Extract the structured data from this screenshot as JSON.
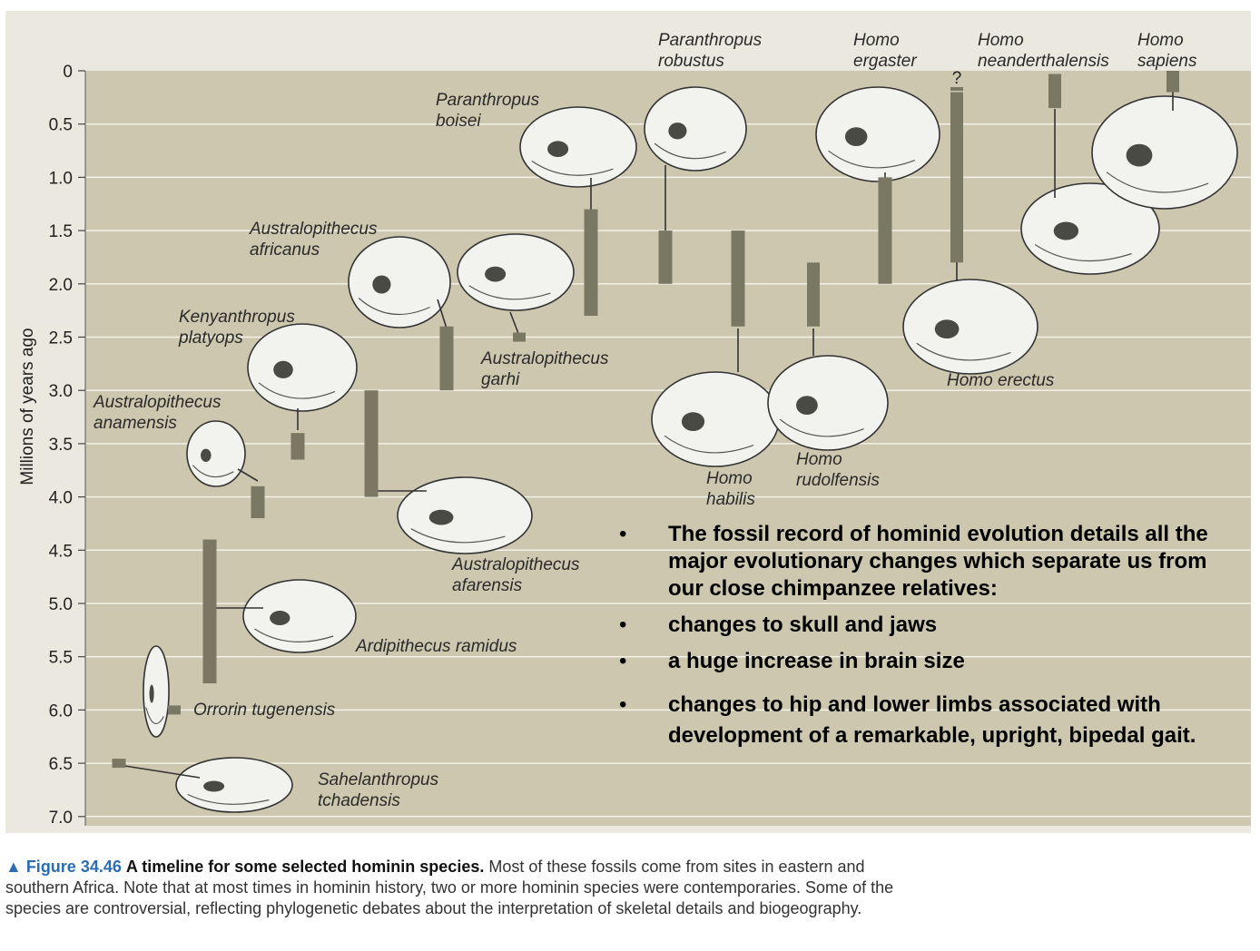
{
  "chart_data": {
    "type": "timeline",
    "ylabel": "Millions of years ago",
    "yticks": [
      "0",
      "0.5",
      "1.0",
      "1.5",
      "2.0",
      "2.5",
      "3.0",
      "3.5",
      "4.0",
      "4.5",
      "5.0",
      "5.5",
      "6.0",
      "6.5",
      "7.0"
    ],
    "ylim": [
      0,
      7.0
    ],
    "grid": true,
    "colors": {
      "panel": "#ccc7ae",
      "bar": "#7a7763",
      "grid": "#f4f2e8",
      "skull": "#f2f2ee"
    },
    "species": [
      {
        "name": "Sahelanthropus tchadensis",
        "label_lines": [
          "Sahelanthropus",
          "tchadensis"
        ],
        "start_mya": 6.5,
        "end_mya": 6.5
      },
      {
        "name": "Orrorin tugenensis",
        "label_lines": [
          "Orrorin tugenensis"
        ],
        "start_mya": 6.0,
        "end_mya": 6.0
      },
      {
        "name": "Ardipithecus ramidus",
        "label_lines": [
          "Ardipithecus ramidus"
        ],
        "start_mya": 5.75,
        "end_mya": 4.4
      },
      {
        "name": "Australopithecus anamensis",
        "label_lines": [
          "Australopithecus",
          "anamensis"
        ],
        "start_mya": 4.2,
        "end_mya": 3.9
      },
      {
        "name": "Kenyanthropus platyops",
        "label_lines": [
          "Kenyanthropus",
          "platyops"
        ],
        "start_mya": 3.65,
        "end_mya": 3.4
      },
      {
        "name": "Australopithecus afarensis",
        "label_lines": [
          "Australopithecus",
          "afarensis"
        ],
        "start_mya": 4.0,
        "end_mya": 3.0
      },
      {
        "name": "Australopithecus africanus",
        "label_lines": [
          "Australopithecus",
          "africanus"
        ],
        "start_mya": 3.0,
        "end_mya": 2.4
      },
      {
        "name": "Australopithecus garhi",
        "label_lines": [
          "Australopithecus",
          "garhi"
        ],
        "start_mya": 2.5,
        "end_mya": 2.5
      },
      {
        "name": "Paranthropus boisei",
        "label_lines": [
          "Paranthropus",
          "boisei"
        ],
        "start_mya": 2.3,
        "end_mya": 1.3
      },
      {
        "name": "Paranthropus robustus",
        "label_lines": [
          "Paranthropus",
          "robustus"
        ],
        "start_mya": 2.0,
        "end_mya": 1.5
      },
      {
        "name": "Homo habilis",
        "label_lines": [
          "Homo",
          "habilis"
        ],
        "start_mya": 2.4,
        "end_mya": 1.5
      },
      {
        "name": "Homo rudolfensis",
        "label_lines": [
          "Homo",
          "rudolfensis"
        ],
        "start_mya": 2.4,
        "end_mya": 1.8
      },
      {
        "name": "Homo ergaster",
        "label_lines": [
          "Homo",
          "ergaster"
        ],
        "start_mya": 2.0,
        "end_mya": 1.0
      },
      {
        "name": "Homo erectus",
        "label_lines": [
          "Homo erectus"
        ],
        "start_mya": 1.8,
        "end_mya": 0.2,
        "uncertain_to_mya": 0.0,
        "uncertain_mark": "?"
      },
      {
        "name": "Homo neanderthalensis",
        "label_lines": [
          "Homo",
          "neanderthalensis"
        ],
        "start_mya": 0.35,
        "end_mya": 0.03
      },
      {
        "name": "Homo sapiens",
        "label_lines": [
          "Homo",
          "sapiens"
        ],
        "start_mya": 0.2,
        "end_mya": 0.0
      }
    ]
  },
  "bullets": [
    "The fossil record of hominid evolution details all the major evolutionary changes which separate us from our close chimpanzee relatives:",
    "changes to skull and jaws",
    "a huge increase in brain size",
    "changes to hip and lower limbs associated with development of a remarkable, upright, bipedal gait."
  ],
  "bullet_symbol": "•",
  "caption": {
    "figure": "▲ Figure 34.46",
    "title": "A timeline for some selected hominin species.",
    "text": "Most of these fossils come from sites in eastern and southern Africa. Note that at most times in hominin history, two or more hominin species were contemporaries. Some of the species are controversial, reflecting phylogenetic debates about the interpretation of skeletal details and biogeography."
  }
}
